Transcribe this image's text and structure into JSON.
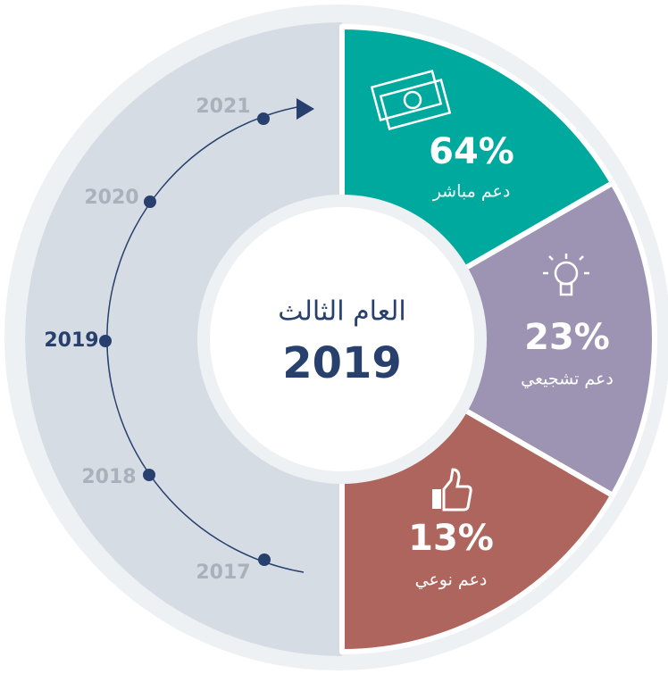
{
  "center": {
    "title": "العام الثالث",
    "year": "2019"
  },
  "segments": [
    {
      "value": "64%",
      "label": "دعم مباشر"
    },
    {
      "value": "23%",
      "label": "دعم تشجيعي"
    },
    {
      "value": "13%",
      "label": "دعم نوعي"
    }
  ],
  "timeline": [
    "2021",
    "2020",
    "2019",
    "2018",
    "2017"
  ]
}
